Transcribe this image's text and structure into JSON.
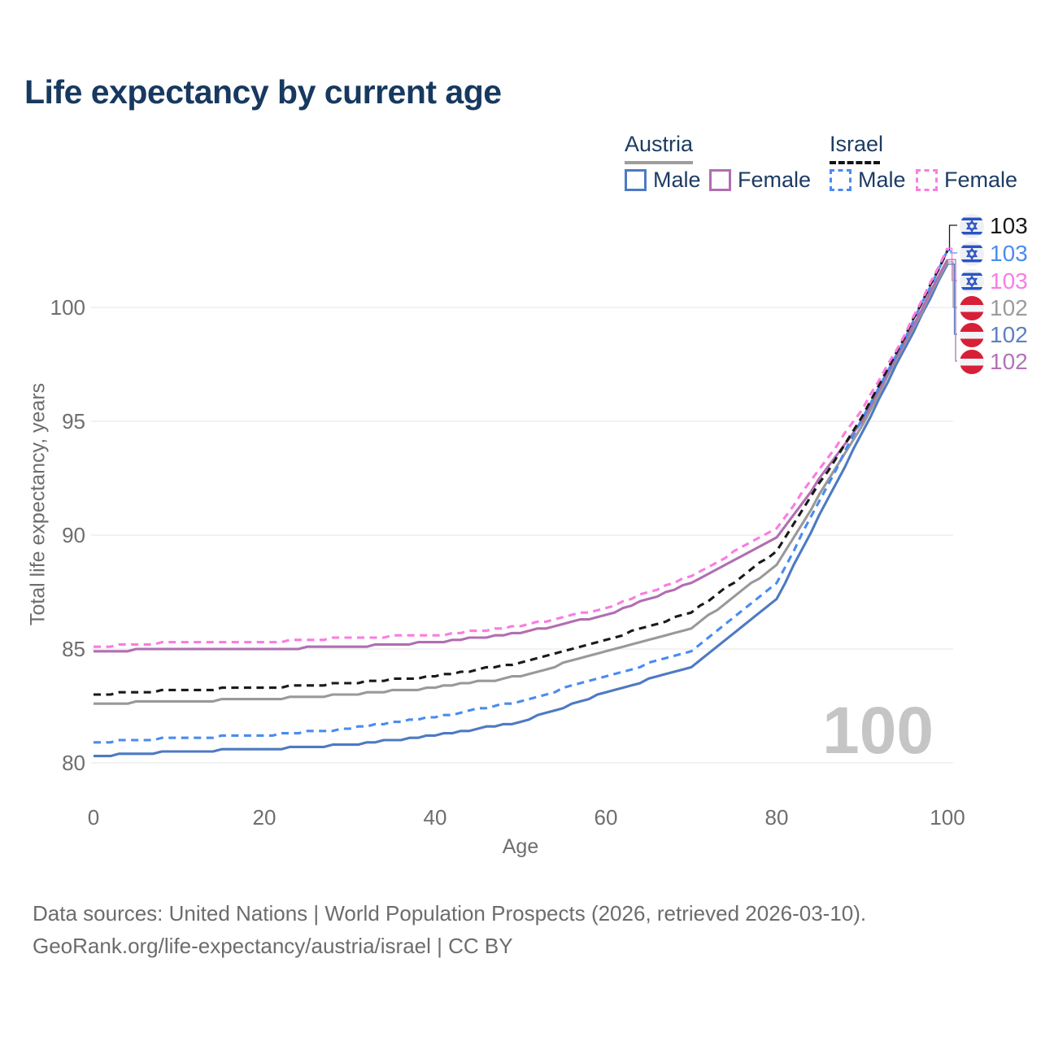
{
  "title": "Life expectancy by current age",
  "legend": {
    "groups": [
      {
        "label": "Austria",
        "sample_color": "#9e9e9e",
        "sample_dash": "solid",
        "items": [
          {
            "label": "Male",
            "color": "#4d7ac2",
            "dash": "solid"
          },
          {
            "label": "Female",
            "color": "#b06fb0",
            "dash": "solid"
          }
        ]
      },
      {
        "label": "Israel",
        "sample_color": "#141414",
        "sample_dash": "dashed",
        "items": [
          {
            "label": "Male",
            "color": "#4a8bf0",
            "dash": "dashed"
          },
          {
            "label": "Female",
            "color": "#fb7ce0",
            "dash": "dashed"
          }
        ]
      }
    ]
  },
  "end_labels": [
    {
      "value": "103",
      "flag": "israel-flag-icon",
      "color": "#1a1a1a",
      "series": "israel_all"
    },
    {
      "value": "103",
      "flag": "israel-flag-icon",
      "color": "#4a8df2",
      "series": "israel_male"
    },
    {
      "value": "103",
      "flag": "israel-flag-icon",
      "color": "#f97ce5",
      "series": "israel_female"
    },
    {
      "value": "102",
      "flag": "austria-flag-icon",
      "color": "#9c9c9c",
      "series": "austria_all"
    },
    {
      "value": "102",
      "flag": "austria-flag-icon",
      "color": "#5d80c2",
      "series": "austria_male"
    },
    {
      "value": "102",
      "flag": "austria-flag-icon",
      "color": "#b273b8",
      "series": "austria_female"
    }
  ],
  "watermark": "100",
  "footer": {
    "line1": "Data sources: United Nations | World Population Prospects (2026, retrieved 2026-03-10).",
    "line2": "GeoRank.org/life-expectancy/austria/israel | CC BY"
  },
  "chart_data": {
    "type": "line",
    "title": "Life expectancy by current age",
    "xlabel": "Age",
    "ylabel": "Total life expectancy, years",
    "x": [
      0,
      10,
      20,
      30,
      40,
      50,
      60,
      70,
      80,
      90,
      95,
      100
    ],
    "xticks": [
      0,
      20,
      40,
      60,
      80,
      100
    ],
    "yticks": [
      80,
      85,
      90,
      95,
      100
    ],
    "xlim": [
      0,
      100
    ],
    "ylim": [
      79,
      103.5
    ],
    "grid": "horizontal",
    "legend_position": "top-right",
    "series": [
      {
        "name": "austria_male",
        "country": "Austria",
        "sex": "Male",
        "color": "#4d7ac2",
        "dash": "solid",
        "values": [
          80.3,
          80.5,
          80.6,
          80.8,
          81.2,
          81.8,
          83.1,
          84.2,
          87.2,
          94.5,
          98.2,
          101.9
        ]
      },
      {
        "name": "austria_all",
        "country": "Austria",
        "sex": "Both",
        "color": "#999999",
        "dash": "solid",
        "values": [
          82.6,
          82.7,
          82.8,
          83.0,
          83.3,
          83.8,
          84.9,
          85.9,
          88.7,
          94.8,
          98.4,
          102.0
        ]
      },
      {
        "name": "austria_female",
        "country": "Austria",
        "sex": "Female",
        "color": "#b06fb0",
        "dash": "solid",
        "values": [
          84.9,
          85.0,
          85.0,
          85.1,
          85.3,
          85.7,
          86.5,
          87.9,
          89.9,
          95.0,
          98.5,
          102.1
        ]
      },
      {
        "name": "israel_male",
        "country": "Israel",
        "sex": "Male",
        "color": "#4a8bf0",
        "dash": "dashed",
        "values": [
          80.9,
          81.1,
          81.2,
          81.5,
          82.0,
          82.7,
          83.8,
          84.9,
          87.9,
          95.1,
          98.6,
          102.5
        ]
      },
      {
        "name": "israel_all",
        "country": "Israel",
        "sex": "Both",
        "color": "#1a1a1a",
        "dash": "dashed",
        "values": [
          83.0,
          83.2,
          83.3,
          83.5,
          83.8,
          84.4,
          85.4,
          86.6,
          89.3,
          95.2,
          98.7,
          102.5
        ]
      },
      {
        "name": "israel_female",
        "country": "Israel",
        "sex": "Female",
        "color": "#fb7ce0",
        "dash": "dashed",
        "values": [
          85.1,
          85.3,
          85.3,
          85.5,
          85.6,
          86.0,
          86.8,
          88.2,
          90.3,
          95.5,
          98.8,
          102.6
        ]
      }
    ]
  }
}
